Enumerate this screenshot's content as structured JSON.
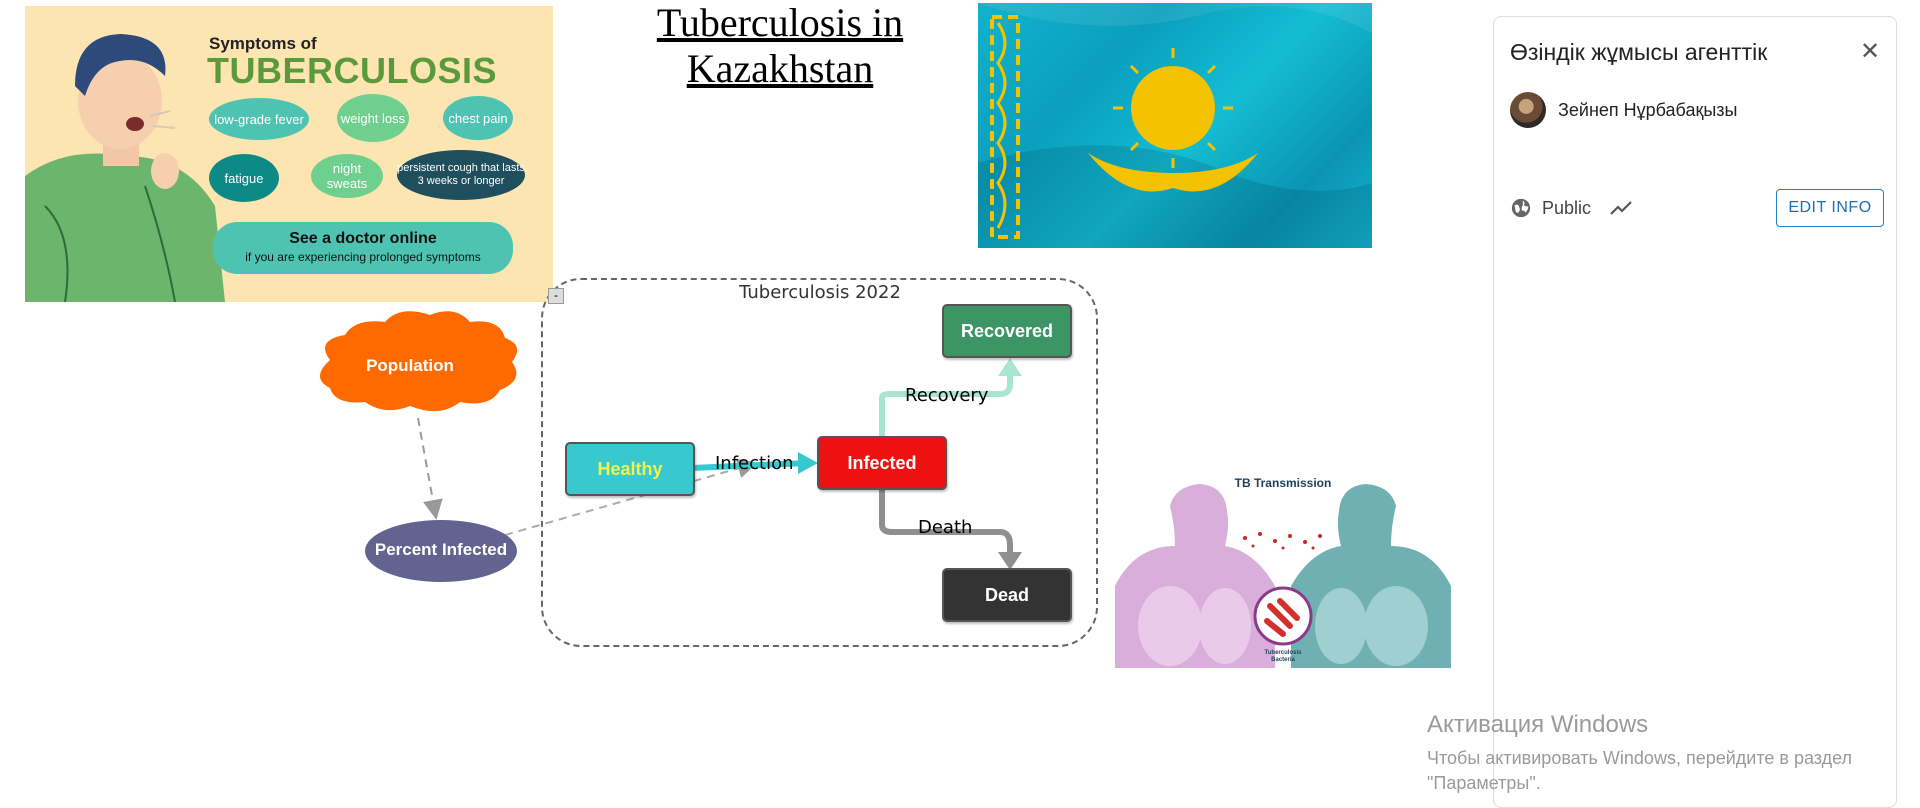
{
  "page": {
    "title": "Tuberculosis in Kazakhstan"
  },
  "poster": {
    "heading_small": "Symptoms of",
    "heading_big": "TUBERCULOSIS",
    "symptoms": [
      "low-grade fever",
      "weight loss",
      "chest pain",
      "fatigue",
      "night sweats",
      "persistent cough that lasts 3 weeks or longer"
    ],
    "cta_title": "See a doctor online",
    "cta_subtitle": "if you are experiencing prolonged symptoms"
  },
  "panel": {
    "title": "Өзіндік жұмысы агенттік",
    "owner_name": "Зейнеп Нұрбабақызы",
    "visibility": "Public",
    "edit_button": "EDIT INFO",
    "icons": {
      "close": "close-icon",
      "visibility": "globe-icon",
      "trend": "trend-icon"
    }
  },
  "diagram": {
    "group_label": "Tuberculosis 2022",
    "collapse_symbol": "-",
    "nodes": {
      "population": "Population",
      "percent_infected": "Percent Infected",
      "healthy": "Healthy",
      "infected": "Infected",
      "recovered": "Recovered",
      "dead": "Dead"
    },
    "flows": {
      "infection": "Infection",
      "recovery": "Recovery",
      "death": "Death"
    },
    "colors": {
      "population": "#ff6a00",
      "percent_infected": "#636392",
      "healthy": "#38c9cf",
      "infected": "#ee1111",
      "recovered": "#3d9566",
      "dead": "#333333"
    }
  },
  "transmission": {
    "title": "TB Transmission",
    "bacteria_label": "Tuberculosis Bacteria"
  },
  "watermark": {
    "title": "Активация Windows",
    "subtitle": "Чтобы активировать Windows, перейдите в раздел \"Параметры\"."
  }
}
